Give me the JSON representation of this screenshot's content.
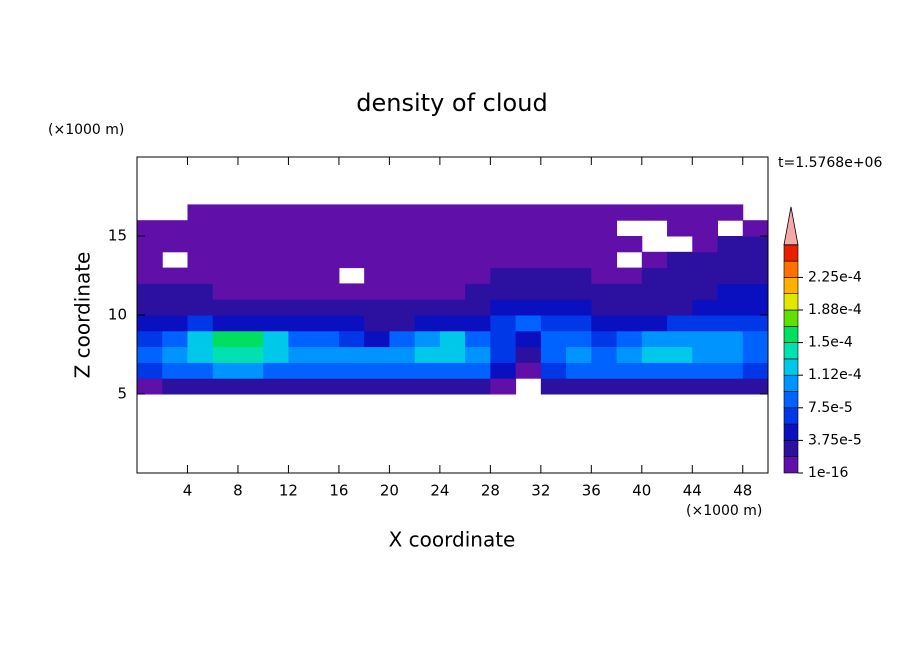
{
  "chart_data": {
    "type": "contour",
    "title": "density of cloud",
    "xlabel": "X coordinate",
    "ylabel": "Z coordinate",
    "x_unit": "(×1000 m)",
    "y_unit": "(×1000 m)",
    "annotation": "t=1.5768e+06",
    "xlim": [
      0,
      50
    ],
    "ylim": [
      0,
      20
    ],
    "xticks": [
      4,
      8,
      12,
      16,
      20,
      24,
      28,
      32,
      36,
      40,
      44,
      48
    ],
    "yticks": [
      5,
      10,
      15
    ],
    "x": [
      1,
      3,
      5,
      7,
      9,
      11,
      13,
      15,
      17,
      19,
      21,
      23,
      25,
      27,
      29,
      31,
      33,
      35,
      37,
      39,
      41,
      43,
      45,
      47,
      49
    ],
    "y": [
      5.5,
      6.5,
      7.5,
      8.5,
      9.5,
      10.5,
      11.5,
      12.5,
      13.5,
      14.5,
      15.5,
      16.5
    ],
    "z": [
      [
        1e-05,
        3e-05,
        3e-05,
        3e-05,
        3e-05,
        3e-05,
        3e-05,
        3e-05,
        3e-05,
        3e-05,
        3e-05,
        3e-05,
        3e-05,
        3e-05,
        1e-05,
        null,
        2e-05,
        3e-05,
        3e-05,
        3e-05,
        3e-05,
        3e-05,
        3e-05,
        3e-05,
        2e-05
      ],
      [
        6e-05,
        8e-05,
        9e-05,
        0.0001,
        0.0001,
        9e-05,
        8e-05,
        8e-05,
        8e-05,
        8e-05,
        9e-05,
        9e-05,
        9e-05,
        8e-05,
        4e-05,
        1e-05,
        6e-05,
        8e-05,
        8e-05,
        9e-05,
        9e-05,
        9e-05,
        9e-05,
        8e-05,
        7e-05
      ],
      [
        9e-05,
        0.0001,
        0.00012,
        0.00014,
        0.00014,
        0.00013,
        0.0001,
        0.00011,
        0.0001,
        0.0001,
        0.00011,
        0.00012,
        0.00013,
        0.00011,
        6e-05,
        2e-05,
        8e-05,
        0.0001,
        9e-05,
        0.00011,
        0.00012,
        0.00012,
        0.00011,
        0.0001,
        9e-05
      ],
      [
        7e-05,
        9e-05,
        0.00012,
        0.00016,
        0.00016,
        0.00013,
        9e-05,
        8e-05,
        6e-05,
        4e-05,
        8e-05,
        0.00011,
        0.00012,
        9e-05,
        6e-05,
        5e-05,
        8e-05,
        9e-05,
        7e-05,
        9e-05,
        0.00011,
        0.00011,
        0.0001,
        0.0001,
        9e-05
      ],
      [
        5e-05,
        5e-05,
        6e-05,
        5e-05,
        5e-05,
        5e-05,
        4e-05,
        4e-05,
        5e-05,
        3e-05,
        3e-05,
        4e-05,
        4e-05,
        5e-05,
        6e-05,
        8e-05,
        7e-05,
        6e-05,
        5e-05,
        4e-05,
        5e-05,
        6e-05,
        6e-05,
        7e-05,
        6e-05
      ],
      [
        3e-05,
        3e-05,
        3e-05,
        2.5e-05,
        2.5e-05,
        2.5e-05,
        2e-05,
        2e-05,
        2e-05,
        2e-05,
        2e-05,
        2e-05,
        2e-05,
        3e-05,
        4e-05,
        5e-05,
        4e-05,
        4e-05,
        3e-05,
        2e-05,
        2e-05,
        3e-05,
        4e-05,
        4e-05,
        5e-05
      ],
      [
        2.5e-05,
        2e-05,
        2e-05,
        1e-05,
        1e-05,
        1e-05,
        1e-05,
        1e-05,
        1e-05,
        1e-05,
        1e-05,
        1e-05,
        1e-05,
        2e-05,
        3e-05,
        3e-05,
        3e-05,
        3e-05,
        2e-05,
        2e-05,
        2e-05,
        2.5e-05,
        3e-05,
        4e-05,
        4e-05
      ],
      [
        1e-05,
        1e-05,
        1e-05,
        1e-05,
        1e-05,
        1e-05,
        1e-05,
        1e-05,
        null,
        1e-05,
        1e-05,
        1e-05,
        1e-05,
        1e-05,
        2e-05,
        2e-05,
        2e-05,
        2e-05,
        1e-05,
        1e-05,
        2e-05,
        2.5e-05,
        3e-05,
        3e-05,
        3e-05
      ],
      [
        1e-05,
        null,
        1e-05,
        1e-05,
        1e-05,
        1e-05,
        1e-05,
        1e-05,
        1e-05,
        1e-05,
        1e-05,
        1e-05,
        1e-05,
        1e-05,
        1e-05,
        1e-05,
        1e-05,
        1e-05,
        1e-05,
        null,
        1e-05,
        2e-05,
        2e-05,
        2.5e-05,
        2.5e-05
      ],
      [
        1e-05,
        1e-05,
        1e-05,
        1e-05,
        1e-05,
        1e-05,
        1e-05,
        1e-05,
        1e-05,
        1e-05,
        1e-05,
        1e-05,
        1e-05,
        1e-05,
        1e-05,
        1e-05,
        1e-05,
        1e-05,
        1e-05,
        1e-05,
        null,
        null,
        1e-05,
        2e-05,
        2e-05
      ],
      [
        1e-05,
        1e-05,
        1e-05,
        1e-05,
        1e-05,
        1e-05,
        1e-05,
        1e-05,
        1e-05,
        1e-05,
        1e-05,
        1e-05,
        1e-05,
        1e-05,
        1e-05,
        1e-05,
        1e-05,
        1e-05,
        1e-05,
        null,
        null,
        1e-05,
        1e-05,
        null,
        1e-05
      ],
      [
        null,
        null,
        1e-05,
        1e-05,
        1e-05,
        1e-05,
        1e-05,
        1e-05,
        1e-05,
        1e-05,
        1e-05,
        1e-05,
        1e-05,
        1e-05,
        1e-05,
        1e-05,
        1e-05,
        1e-05,
        1e-05,
        1e-05,
        1e-05,
        1e-05,
        1e-05,
        1e-05,
        null
      ]
    ],
    "levels": [
      1e-16,
      1.875e-05,
      3.75e-05,
      5.625e-05,
      7.5e-05,
      9.375e-05,
      0.0001125,
      0.00013125,
      0.00015,
      0.00016875,
      0.0001875,
      0.00020625,
      0.000225,
      0.00024375,
      0.0002625
    ],
    "colors": [
      "#6010a8",
      "#2c10a0",
      "#0a10c0",
      "#0038e8",
      "#0062ff",
      "#0094ff",
      "#00c8e8",
      "#00e0b0",
      "#00e060",
      "#60e000",
      "#e0e800",
      "#ffb000",
      "#ff7000",
      "#e82000"
    ],
    "extend_color": "#f4a8a8",
    "cbar_ticks": [
      {
        "value": 1e-16,
        "label": "1e-16"
      },
      {
        "value": 3.75e-05,
        "label": "3.75e-5"
      },
      {
        "value": 7.5e-05,
        "label": "7.5e-5"
      },
      {
        "value": 0.0001125,
        "label": "1.12e-4"
      },
      {
        "value": 0.00015,
        "label": "1.5e-4"
      },
      {
        "value": 0.0001875,
        "label": "1.88e-4"
      },
      {
        "value": 0.000225,
        "label": "2.25e-4"
      }
    ]
  }
}
